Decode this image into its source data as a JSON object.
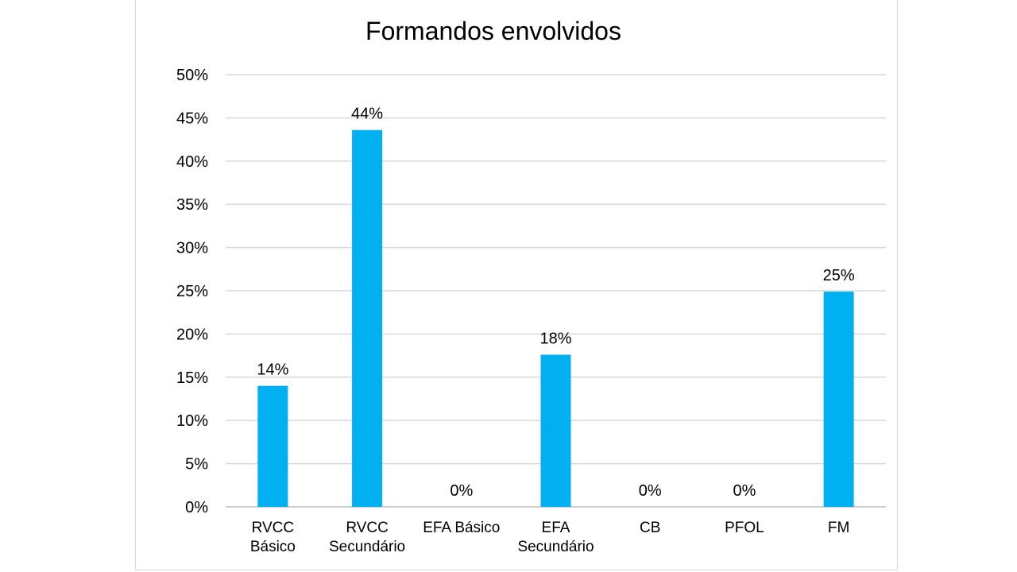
{
  "chart_data": {
    "type": "bar",
    "title": "Formandos envolvidos",
    "xlabel": "",
    "ylabel": "",
    "categories": [
      [
        "RVCC",
        "Básico"
      ],
      [
        "RVCC",
        "Secundário"
      ],
      [
        "EFA Básico"
      ],
      [
        "EFA",
        "Secundário"
      ],
      [
        "CB"
      ],
      [
        "PFOL"
      ],
      [
        "FM"
      ]
    ],
    "values": [
      14,
      43.6,
      0,
      17.6,
      0,
      0,
      24.9
    ],
    "data_labels": [
      "14%",
      "44%",
      "0%",
      "18%",
      "0%",
      "0%",
      "25%"
    ],
    "ylim": [
      0,
      50
    ],
    "yticks": [
      0,
      5,
      10,
      15,
      20,
      25,
      30,
      35,
      40,
      45,
      50
    ],
    "ytick_labels": [
      "0%",
      "5%",
      "10%",
      "15%",
      "20%",
      "25%",
      "30%",
      "35%",
      "40%",
      "45%",
      "50%"
    ],
    "grid": true,
    "legend": "none",
    "colors": {
      "bar": "#00B0F0",
      "grid": "#d9d9d9",
      "axis": "#bfbfbf"
    }
  }
}
